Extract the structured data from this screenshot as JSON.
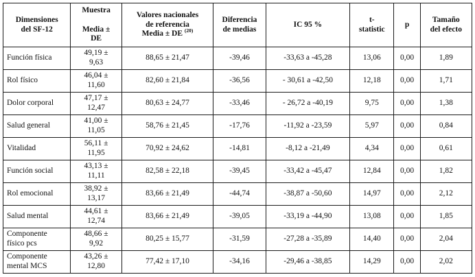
{
  "table": {
    "header": {
      "dimensiones": "Dimensiones\ndel SF-12",
      "muestra": "Muestra\n\nMedia ±\nDE",
      "valores": "Valores nacionales\nde referencia\nMedia ± DE ",
      "valores_ref": "(20)",
      "diferencia": "Diferencia\nde medias",
      "ic95": "IC 95 %",
      "t_statistic": "t-\nstatistic",
      "p": "p",
      "efecto": "Tamaño\ndel efecto"
    },
    "rows": [
      {
        "dimension": "Función física",
        "muestra": "49,19 ±\n9,63",
        "valores": "88,65 ± 21,47",
        "diferencia": "-39,46",
        "ic95": "-33,63 a -45,28",
        "t": "13,06",
        "p": "0,00",
        "efecto": "1,89"
      },
      {
        "dimension": "Rol físico",
        "muestra": "46,04 ±\n11,60",
        "valores": "82,60 ± 21,84",
        "diferencia": "-36,56",
        "ic95": "- 30,61 a -42,50",
        "t": "12,18",
        "p": "0,00",
        "efecto": "1,71"
      },
      {
        "dimension": "Dolor corporal",
        "muestra": "47,17 ±\n12,47",
        "valores": "80,63 ± 24,77",
        "diferencia": "-33,46",
        "ic95": "- 26,72 a -40,19",
        "t": "9,75",
        "p": "0,00",
        "efecto": "1,38"
      },
      {
        "dimension": "Salud general",
        "muestra": "41,00 ±\n11,05",
        "valores": "58,76 ± 21,45",
        "diferencia": "-17,76",
        "ic95": "-11,92 a -23,59",
        "t": "5,97",
        "p": "0,00",
        "efecto": "0,84"
      },
      {
        "dimension": "Vitalidad",
        "muestra": "56,11 ±\n11,95",
        "valores": "70,92 ± 24,62",
        "diferencia": "-14,81",
        "ic95": "-8,12 a -21,49",
        "t": "4,34",
        "p": "0,00",
        "efecto": "0,61"
      },
      {
        "dimension": "Función social",
        "muestra": "43,13 ±\n11,11",
        "valores": "82,58 ± 22,18",
        "diferencia": "-39,45",
        "ic95": "-33,42 a -45,47",
        "t": "12,84",
        "p": "0,00",
        "efecto": "1,82"
      },
      {
        "dimension": "Rol emocional",
        "muestra": "38,92 ±\n13,17",
        "valores": "83,66 ± 21,49",
        "diferencia": "-44,74",
        "ic95": "-38,87 a -50,60",
        "t": "14,97",
        "p": "0,00",
        "efecto": "2,12"
      },
      {
        "dimension": "Salud mental",
        "muestra": "44,61 ±\n12,74",
        "valores": "83,66 ± 21,49",
        "diferencia": "-39,05",
        "ic95": "-33,19 a -44,90",
        "t": "13,08",
        "p": "0,00",
        "efecto": "1,85"
      },
      {
        "dimension": "Componente\nfísico pcs",
        "muestra": "48,66 ±\n9,92",
        "valores": "80,25 ± 15,77",
        "diferencia": "-31,59",
        "ic95": "-27,28 a -35,89",
        "t": "14,40",
        "p": "0,00",
        "efecto": "2,04"
      },
      {
        "dimension": "Componente\nmental MCS",
        "muestra": "43,26 ±\n12,80",
        "valores": "77,42 ± 17,10",
        "diferencia": "-34,16",
        "ic95": "-29,46 a -38,85",
        "t": "14,29",
        "p": "0,00",
        "efecto": "2,02"
      }
    ]
  }
}
